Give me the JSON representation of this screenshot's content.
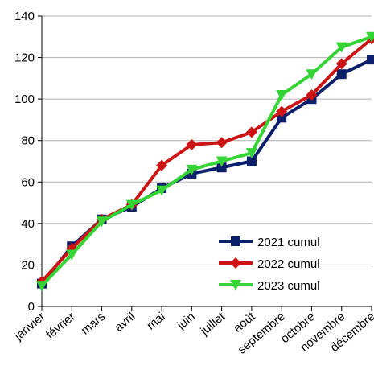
{
  "chart_data": {
    "type": "line",
    "title": "",
    "xlabel": "",
    "ylabel": "",
    "categories": [
      "janvier",
      "février",
      "mars",
      "avril",
      "mai",
      "juin",
      "juillet",
      "août",
      "septembre",
      "octobre",
      "novembre",
      "décembre"
    ],
    "ylim": [
      0,
      140
    ],
    "yticks": [
      0,
      20,
      40,
      60,
      80,
      100,
      120,
      140
    ],
    "grid": true,
    "legend_position": "bottom-right",
    "series": [
      {
        "name": "2021 cumul",
        "color": "#0b1f6b",
        "marker": "square",
        "values": [
          11,
          29,
          42,
          48,
          57,
          64,
          67,
          70,
          91,
          100,
          112,
          119
        ]
      },
      {
        "name": "2022 cumul",
        "color": "#cc1414",
        "marker": "diamond",
        "values": [
          12,
          28,
          42,
          49,
          68,
          78,
          79,
          84,
          94,
          102,
          117,
          129
        ]
      },
      {
        "name": "2023 cumul",
        "color": "#33d433",
        "marker": "triangle-down",
        "values": [
          10,
          25,
          41,
          49,
          56,
          66,
          70,
          74,
          102,
          112,
          125,
          130
        ]
      }
    ]
  }
}
